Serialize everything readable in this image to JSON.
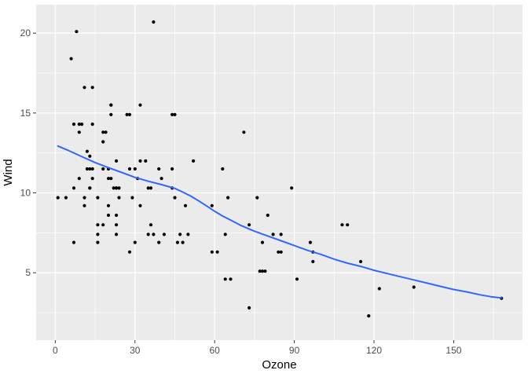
{
  "chart_data": {
    "type": "scatter",
    "title": "",
    "xlabel": "Ozone",
    "ylabel": "Wind",
    "legend": "none",
    "grid": "major+minor",
    "x_major_ticks": [
      0,
      30,
      60,
      90,
      120,
      150
    ],
    "x_minor_ticks": [
      15,
      45,
      75,
      105,
      135,
      165
    ],
    "y_major_ticks": [
      5,
      10,
      15,
      20
    ],
    "y_minor_ticks": [
      2.5,
      7.5,
      12.5,
      17.5
    ],
    "xlim": [
      -7.2,
      175.9
    ],
    "ylim": [
      0.78,
      21.78
    ],
    "points": [
      [
        41,
        7.4
      ],
      [
        36,
        8
      ],
      [
        12,
        12.6
      ],
      [
        18,
        11.5
      ],
      [
        28,
        14.9
      ],
      [
        23,
        8.6
      ],
      [
        19,
        13.8
      ],
      [
        8,
        20.1
      ],
      [
        7,
        6.9
      ],
      [
        16,
        9.7
      ],
      [
        11,
        9.2
      ],
      [
        14,
        10.9
      ],
      [
        18,
        13.2
      ],
      [
        14,
        11.5
      ],
      [
        34,
        12
      ],
      [
        6,
        18.4
      ],
      [
        30,
        11.5
      ],
      [
        11,
        9.7
      ],
      [
        1,
        9.7
      ],
      [
        11,
        16.6
      ],
      [
        4,
        9.7
      ],
      [
        32,
        12
      ],
      [
        23,
        12
      ],
      [
        45,
        14.9
      ],
      [
        115,
        5.7
      ],
      [
        37,
        7.4
      ],
      [
        29,
        9.7
      ],
      [
        71,
        13.8
      ],
      [
        39,
        11.5
      ],
      [
        23,
        8
      ],
      [
        21,
        14.9
      ],
      [
        37,
        20.7
      ],
      [
        20,
        9.2
      ],
      [
        12,
        11.5
      ],
      [
        13,
        10.3
      ],
      [
        135,
        4.1
      ],
      [
        49,
        9.2
      ],
      [
        32,
        9.2
      ],
      [
        64,
        4.6
      ],
      [
        40,
        10.9
      ],
      [
        77,
        5.1
      ],
      [
        97,
        6.3
      ],
      [
        97,
        5.7
      ],
      [
        85,
        7.4
      ],
      [
        10,
        14.3
      ],
      [
        27,
        14.9
      ],
      [
        7,
        14.3
      ],
      [
        48,
        6.9
      ],
      [
        35,
        10.3
      ],
      [
        61,
        6.3
      ],
      [
        79,
        5.1
      ],
      [
        63,
        11.5
      ],
      [
        16,
        6.9
      ],
      [
        80,
        8.6
      ],
      [
        108,
        8
      ],
      [
        20,
        8.6
      ],
      [
        52,
        12
      ],
      [
        82,
        7.4
      ],
      [
        50,
        7.4
      ],
      [
        64,
        7.4
      ],
      [
        59,
        9.2
      ],
      [
        39,
        6.9
      ],
      [
        9,
        13.8
      ],
      [
        16,
        7.4
      ],
      [
        78,
        6.9
      ],
      [
        35,
        7.4
      ],
      [
        66,
        4.6
      ],
      [
        122,
        4
      ],
      [
        89,
        10.3
      ],
      [
        110,
        8
      ],
      [
        44,
        11.5
      ],
      [
        28,
        11.5
      ],
      [
        65,
        9.7
      ],
      [
        22,
        10.3
      ],
      [
        59,
        6.3
      ],
      [
        23,
        7.4
      ],
      [
        31,
        10.9
      ],
      [
        44,
        10.3
      ],
      [
        21,
        15.5
      ],
      [
        9,
        14.3
      ],
      [
        45,
        9.7
      ],
      [
        168,
        3.4
      ],
      [
        73,
        8
      ],
      [
        76,
        9.7
      ],
      [
        118,
        2.3
      ],
      [
        84,
        6.3
      ],
      [
        85,
        6.3
      ],
      [
        96,
        6.9
      ],
      [
        78,
        5.1
      ],
      [
        73,
        2.8
      ],
      [
        91,
        4.6
      ],
      [
        47,
        7.4
      ],
      [
        32,
        15.5
      ],
      [
        20,
        10.9
      ],
      [
        23,
        10.3
      ],
      [
        21,
        10.9
      ],
      [
        24,
        9.7
      ],
      [
        44,
        14.9
      ],
      [
        21,
        15.5
      ],
      [
        28,
        6.3
      ],
      [
        9,
        10.9
      ],
      [
        13,
        11.5
      ],
      [
        46,
        6.9
      ],
      [
        18,
        13.8
      ],
      [
        13,
        10.3
      ],
      [
        24,
        10.3
      ],
      [
        16,
        8
      ],
      [
        13,
        12.3
      ],
      [
        23,
        10.3
      ],
      [
        36,
        10.3
      ],
      [
        7,
        10.3
      ],
      [
        14,
        16.6
      ],
      [
        30,
        6.9
      ],
      [
        14,
        14.3
      ],
      [
        18,
        8
      ],
      [
        20,
        11.5
      ]
    ],
    "smooth_line": [
      [
        1,
        12.93
      ],
      [
        5,
        12.65
      ],
      [
        10,
        12.27
      ],
      [
        15,
        11.9
      ],
      [
        20,
        11.58
      ],
      [
        25,
        11.28
      ],
      [
        30,
        10.97
      ],
      [
        35,
        10.73
      ],
      [
        40,
        10.52
      ],
      [
        45,
        10.28
      ],
      [
        48,
        10.05
      ],
      [
        51,
        9.8
      ],
      [
        54,
        9.5
      ],
      [
        57,
        9.18
      ],
      [
        60,
        8.85
      ],
      [
        63,
        8.55
      ],
      [
        66,
        8.3
      ],
      [
        70,
        7.95
      ],
      [
        75,
        7.6
      ],
      [
        80,
        7.3
      ],
      [
        85,
        7
      ],
      [
        90,
        6.7
      ],
      [
        95,
        6.4
      ],
      [
        100,
        6.15
      ],
      [
        105,
        5.85
      ],
      [
        110,
        5.6
      ],
      [
        115,
        5.4
      ],
      [
        120,
        5.15
      ],
      [
        125,
        4.95
      ],
      [
        130,
        4.75
      ],
      [
        135,
        4.55
      ],
      [
        140,
        4.35
      ],
      [
        145,
        4.15
      ],
      [
        150,
        3.95
      ],
      [
        155,
        3.8
      ],
      [
        160,
        3.62
      ],
      [
        164,
        3.5
      ],
      [
        168,
        3.42
      ]
    ],
    "colors": {
      "plot_background": "#FFFFFF",
      "panel_background": "#EBEBEB",
      "gridline": "#FFFFFF",
      "point": "#000000",
      "smooth_line": "#3366FF",
      "axis_text": "#4D4D4D",
      "axis_title": "#000000",
      "tick_mark": "#333333"
    }
  }
}
